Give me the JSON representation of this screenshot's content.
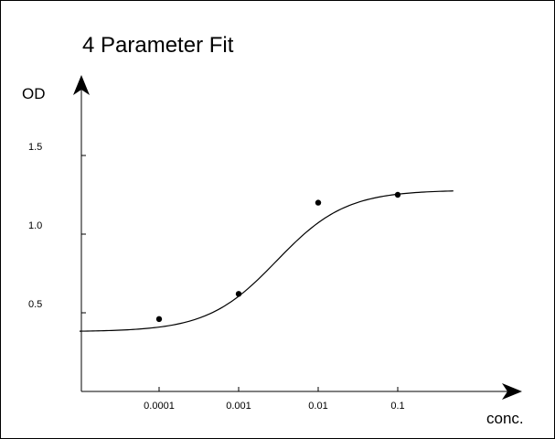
{
  "chart_data": {
    "type": "scatter",
    "title": "4 Parameter Fit",
    "xlabel": "conc.",
    "ylabel": "OD",
    "x_scale": "log",
    "x_ticks": [
      {
        "value": 0.0001,
        "label": "0.0001"
      },
      {
        "value": 0.001,
        "label": "0.001"
      },
      {
        "value": 0.01,
        "label": "0.01"
      },
      {
        "value": 0.1,
        "label": "0.1"
      }
    ],
    "y_ticks": [
      {
        "value": 0.5,
        "label": "0.5"
      },
      {
        "value": 1.0,
        "label": "1.0"
      },
      {
        "value": 1.5,
        "label": "1.5"
      }
    ],
    "xlim": [
      1e-05,
      1
    ],
    "ylim": [
      0,
      1.95
    ],
    "grid": false,
    "points": [
      {
        "x": 0.0001,
        "y": 0.46
      },
      {
        "x": 0.001,
        "y": 0.62
      },
      {
        "x": 0.01,
        "y": 1.2
      },
      {
        "x": 0.1,
        "y": 1.25
      }
    ],
    "fit_curve": {
      "type": "4PL",
      "bottom": 0.38,
      "top": 1.28,
      "ec50": 0.003,
      "hill": 1.0,
      "x_range": [
        1e-05,
        0.5
      ]
    },
    "colors": {
      "axis": "#000000",
      "marker": "#000000",
      "curve": "#000000"
    }
  }
}
